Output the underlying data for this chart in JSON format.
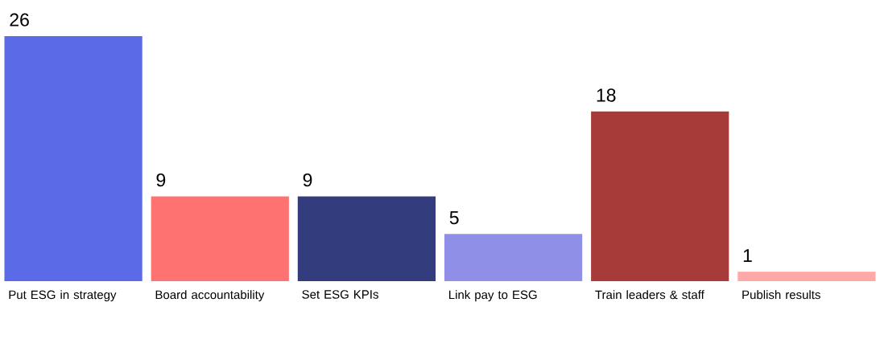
{
  "chart_data": {
    "type": "bar",
    "categories": [
      "Put ESG in strategy",
      "Board accountability",
      "Set ESG KPIs",
      "Link pay to ESG",
      "Train leaders & staff",
      "Publish results"
    ],
    "values": [
      26,
      9,
      9,
      5,
      18,
      1
    ],
    "colors": [
      "#5b6be8",
      "#ff7272",
      "#333c7c",
      "#8f8fe8",
      "#a63b3a",
      "#ffa8a8"
    ],
    "data_labels": true
  }
}
